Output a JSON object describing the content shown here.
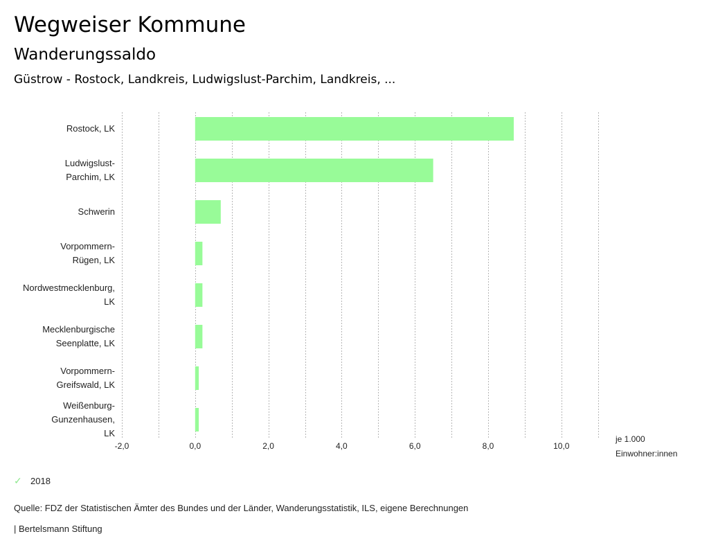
{
  "header": {
    "title": "Wegweiser Kommune",
    "subtitle": "Wanderungssaldo",
    "context": "Güstrow - Rostock, Landkreis, Ludwigslust-Parchim, Landkreis, ..."
  },
  "chart_data": {
    "type": "bar",
    "orientation": "horizontal",
    "title": "Wanderungssaldo",
    "xlabel": "je 1.000 Einwohner:innen",
    "ylabel": "",
    "xlim": [
      -2.0,
      11.0
    ],
    "grid": true,
    "x_ticks": [
      -2.0,
      0.0,
      2.0,
      4.0,
      6.0,
      8.0,
      10.0
    ],
    "x_tick_labels": [
      "-2,0",
      "0,0",
      "2,0",
      "4,0",
      "6,0",
      "8,0",
      "10,0"
    ],
    "unit_label_lines": [
      "je 1.000",
      "Einwohner:innen"
    ],
    "categories": [
      [
        "Rostock, LK"
      ],
      [
        "Ludwigslust-",
        "Parchim, LK"
      ],
      [
        "Schwerin"
      ],
      [
        "Vorpommern-",
        "Rügen, LK"
      ],
      [
        "Nordwestmecklenburg,",
        "LK"
      ],
      [
        "Mecklenburgische",
        "Seenplatte, LK"
      ],
      [
        "Vorpommern-",
        "Greifswald, LK"
      ],
      [
        "Weißenburg-",
        "Gunzenhausen,",
        "LK"
      ]
    ],
    "series": [
      {
        "name": "2018",
        "color": "#98fb98",
        "values": [
          8.7,
          6.5,
          0.7,
          0.2,
          0.2,
          0.2,
          0.1,
          0.1
        ]
      }
    ],
    "legend_position": "bottom-left"
  },
  "legend": {
    "items": [
      {
        "label": "2018",
        "icon": "check-icon",
        "color": "#98fb98"
      }
    ]
  },
  "footer": {
    "source": "Quelle: FDZ der Statistischen Ämter des Bundes und der Länder, Wanderungsstatistik, ILS, eigene Berechnungen",
    "credit": "| Bertelsmann Stiftung"
  }
}
